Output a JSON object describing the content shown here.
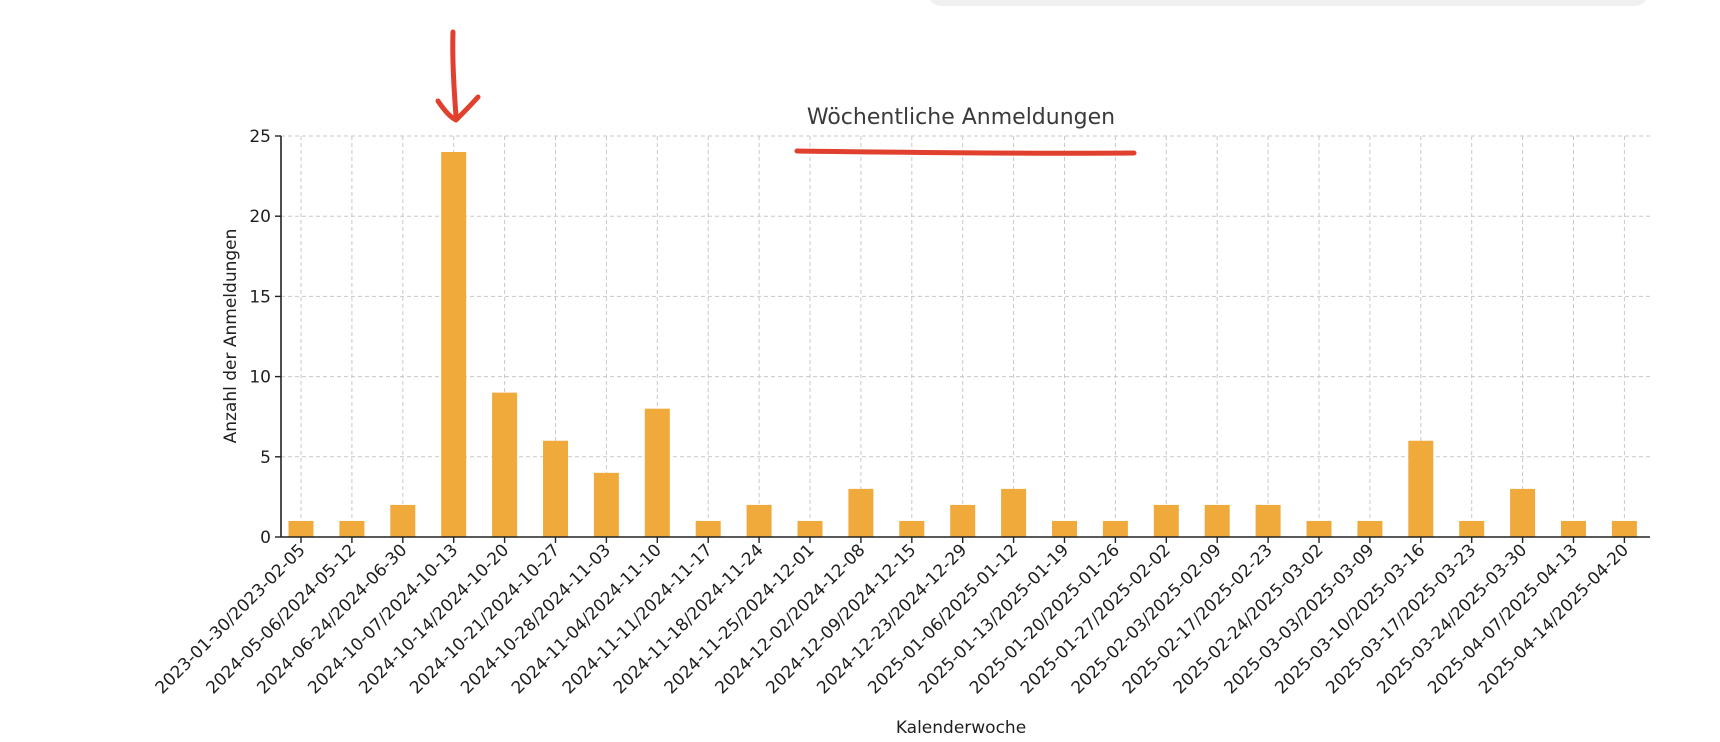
{
  "chart_data": {
    "type": "bar",
    "title": "Wöchentliche Anmeldungen",
    "xlabel": "Kalenderwoche",
    "ylabel": "Anzahl der Anmeldungen",
    "ylim": [
      0,
      25
    ],
    "yticks": [
      "0",
      "5",
      "10",
      "15",
      "20",
      "25"
    ],
    "grid": true,
    "bar_color": "#f0a93b",
    "categories": [
      "2023-01-30/2023-02-05",
      "2024-05-06/2024-05-12",
      "2024-06-24/2024-06-30",
      "2024-10-07/2024-10-13",
      "2024-10-14/2024-10-20",
      "2024-10-21/2024-10-27",
      "2024-10-28/2024-11-03",
      "2024-11-04/2024-11-10",
      "2024-11-11/2024-11-17",
      "2024-11-18/2024-11-24",
      "2024-11-25/2024-12-01",
      "2024-12-02/2024-12-08",
      "2024-12-09/2024-12-15",
      "2024-12-23/2024-12-29",
      "2025-01-06/2025-01-12",
      "2025-01-13/2025-01-19",
      "2025-01-20/2025-01-26",
      "2025-01-27/2025-02-02",
      "2025-02-03/2025-02-09",
      "2025-02-17/2025-02-23",
      "2025-02-24/2025-03-02",
      "2025-03-03/2025-03-09",
      "2025-03-10/2025-03-16",
      "2025-03-17/2025-03-23",
      "2025-03-24/2025-03-30",
      "2025-04-07/2025-04-13",
      "2025-04-14/2025-04-20"
    ],
    "values": [
      1,
      1,
      2,
      24,
      9,
      6,
      4,
      8,
      1,
      2,
      1,
      3,
      1,
      2,
      3,
      1,
      1,
      2,
      2,
      2,
      1,
      1,
      6,
      1,
      3,
      1,
      1
    ]
  },
  "annotations": {
    "arrow_color": "#e0402d",
    "underline_color": "#e0402d",
    "arrow_target_index": 3
  }
}
